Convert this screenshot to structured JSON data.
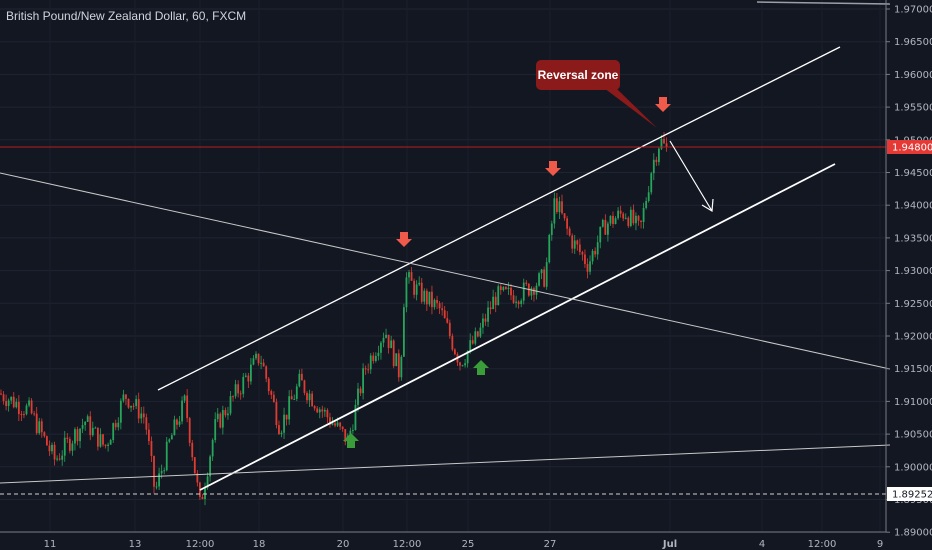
{
  "chart_title": "British Pound/New Zealand Dollar, 60, FXCM",
  "chart_data": {
    "type": "candlestick",
    "title": "British Pound/New Zealand Dollar, 60, FXCM",
    "ylim": [
      1.8875,
      1.9705
    ],
    "y_ticks": [
      "1.97000",
      "1.96500",
      "1.96000",
      "1.95500",
      "1.95000",
      "1.94500",
      "1.94000",
      "1.93500",
      "1.93000",
      "1.92500",
      "1.92000",
      "1.91500",
      "1.91000",
      "1.90500",
      "1.90000",
      "1.89500",
      "1.89000"
    ],
    "x_ticks": [
      "11",
      "13",
      "12:00",
      "18",
      "20",
      "12:00",
      "25",
      "27",
      "Jul",
      "4",
      "12:00",
      "9"
    ],
    "price_labels": [
      {
        "value": "1.94800",
        "color": "#e53935"
      },
      {
        "value": "1.89252",
        "color": "#ffffff"
      }
    ],
    "price_path": [
      [
        0,
        1.9112
      ],
      [
        30,
        1.9085
      ],
      [
        55,
        1.901
      ],
      [
        85,
        1.907
      ],
      [
        105,
        1.903
      ],
      [
        125,
        1.911
      ],
      [
        145,
        1.9075
      ],
      [
        155,
        1.896
      ],
      [
        170,
        1.904
      ],
      [
        185,
        1.91
      ],
      [
        200,
        1.894
      ],
      [
        215,
        1.906
      ],
      [
        235,
        1.911
      ],
      [
        260,
        1.917
      ],
      [
        280,
        1.906
      ],
      [
        300,
        1.913
      ],
      [
        320,
        1.909
      ],
      [
        348,
        1.904
      ],
      [
        365,
        1.915
      ],
      [
        385,
        1.921
      ],
      [
        400,
        1.914
      ],
      [
        405,
        1.929
      ],
      [
        420,
        1.9265
      ],
      [
        440,
        1.924
      ],
      [
        460,
        1.916
      ],
      [
        478,
        1.92
      ],
      [
        495,
        1.926
      ],
      [
        520,
        1.9265
      ],
      [
        545,
        1.929
      ],
      [
        555,
        1.941
      ],
      [
        570,
        1.935
      ],
      [
        588,
        1.931
      ],
      [
        605,
        1.937
      ],
      [
        625,
        1.939
      ],
      [
        640,
        1.936
      ],
      [
        652,
        1.946
      ],
      [
        660,
        1.95
      ],
      [
        666,
        1.9485
      ],
      [
        670,
        1.948
      ]
    ],
    "annotations": {
      "callout": "Reversal zone",
      "down_arrows": 3,
      "up_arrows": 2
    },
    "grid": true,
    "theme": "dark"
  }
}
